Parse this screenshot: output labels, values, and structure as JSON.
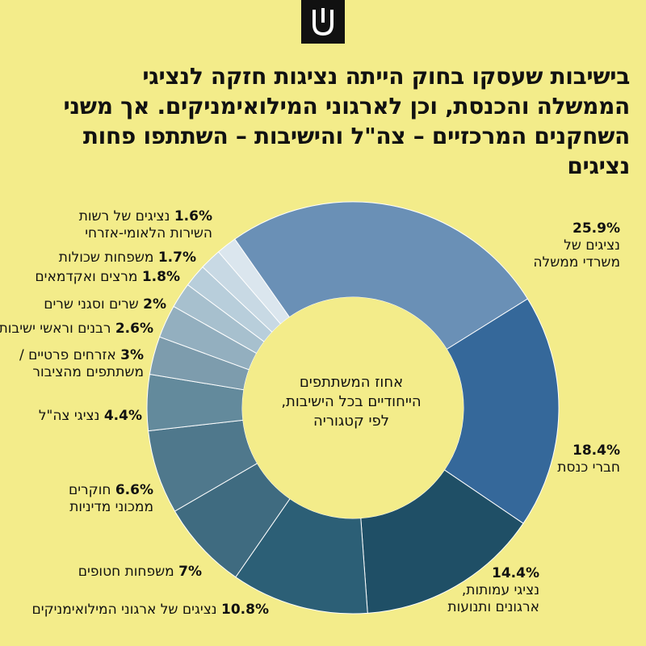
{
  "title": "בישיבות שעסקו בחוק הייתה נציגות חזקה לנציגי הממשלה והכנסת, וכן לארגוני המילואימניקים. אך משני השחקנים המרכזיים – צה\"ל והישיבות – השתתפו פחות נציגים",
  "logo_icon": "logo-mark-icon",
  "chart_data": {
    "type": "pie",
    "donut": true,
    "center_label": "אחוז המשתתפים הייחודיים בכל הישיבות, לפי קטגוריה",
    "slices": [
      {
        "label": "נציגים של משרדי ממשלה",
        "value": 25.9,
        "pct_text": "25.9%",
        "color": "#6a90b6"
      },
      {
        "label": "חברי כנסת",
        "value": 18.4,
        "pct_text": "18.4%",
        "color": "#35689a"
      },
      {
        "label": "נציגי עמותות, ארגונים ותנועות",
        "value": 14.4,
        "pct_text": "14.4%",
        "color": "#1f4f66"
      },
      {
        "label": "נציגים של ארגוני המילואימניקים",
        "value": 10.8,
        "pct_text": "10.8%",
        "color": "#2c5f76"
      },
      {
        "label": "משפחות חטופים",
        "value": 7,
        "pct_text": "7%",
        "color": "#3f6b80"
      },
      {
        "label": "חוקרים ממכוני מדיניות",
        "value": 6.6,
        "pct_text": "6.6%",
        "color": "#4f788c"
      },
      {
        "label": "נציגי צה\"ל",
        "value": 4.4,
        "pct_text": "4.4%",
        "color": "#638a9c"
      },
      {
        "label": "אזרחים פרטיים / משתתפים מהציבור",
        "value": 3,
        "pct_text": "3%",
        "color": "#7d9cad"
      },
      {
        "label": "רבנים וראשי ישיבות",
        "value": 2.6,
        "pct_text": "2.6%",
        "color": "#93afbf"
      },
      {
        "label": "שרים וסגני שרים",
        "value": 2,
        "pct_text": "2%",
        "color": "#a7c0ce"
      },
      {
        "label": "מרצים ואקדמאים",
        "value": 1.8,
        "pct_text": "1.8%",
        "color": "#b8cedb"
      },
      {
        "label": "משפחות שכולות",
        "value": 1.7,
        "pct_text": "1.7%",
        "color": "#c8d9e4"
      },
      {
        "label": "נציגים של רשות השירות הלאומי-אזרחי",
        "value": 1.6,
        "pct_text": "1.6%",
        "color": "#dbe6ee"
      }
    ]
  },
  "labels": {
    "s0_pct": "25.9%",
    "s0_l1": "נציגים של",
    "s0_l2": "משרדי ממשלה",
    "s1_pct": "18.4%",
    "s1_l1": "חברי כנסת",
    "s2_pct": "14.4%",
    "s2_l1": "נציגי עמותות,",
    "s2_l2": "ארגונים ותנועות",
    "s3_pct": "10.8%",
    "s3_l1": "נציגים של ארגוני המילואימניקים",
    "s4_pct": "7%",
    "s4_l1": "משפחות חטופים",
    "s5_pct": "6.6%",
    "s5_l1": "חוקרים",
    "s5_l2": "ממכוני מדיניות",
    "s6_pct": "4.4%",
    "s6_l1": "נציגי צה\"ל",
    "s7_pct": "3%",
    "s7_l1": "אזרחים פרטיים /",
    "s7_l2": "משתתפים מהציבור",
    "s8_pct": "2.6%",
    "s8_l1": "רבנים וראשי ישיבות",
    "s9_pct": "2%",
    "s9_l1": "שרים וסגני שרים",
    "s10_pct": "1.8%",
    "s10_l1": "מרצים ואקדמאים",
    "s11_pct": "1.7%",
    "s11_l1": "משפחות שכולות",
    "s12_pct": "1.6%",
    "s12_l1": "נציגים של רשות",
    "s12_l2": "השירות הלאומי-אזרחי",
    "center_l1": "אחוז המשתתפים",
    "center_l2": "הייחודיים בכל הישיבות,",
    "center_l3": "לפי קטגוריה"
  }
}
